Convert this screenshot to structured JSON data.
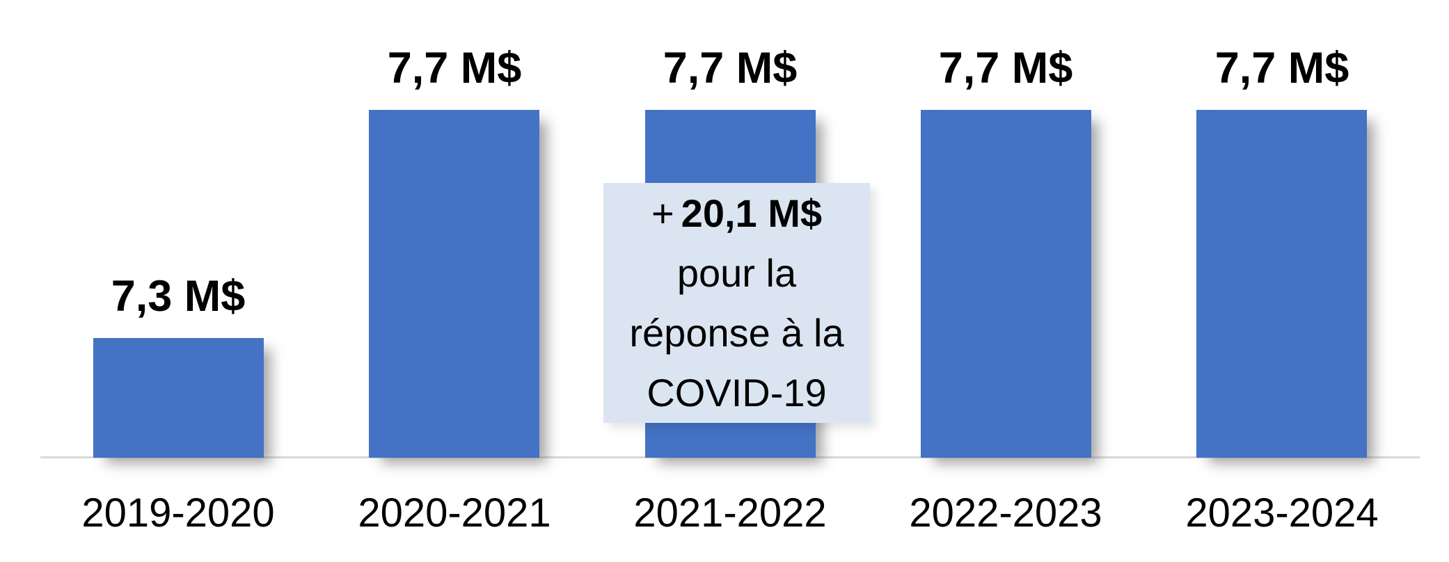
{
  "chart_data": {
    "type": "bar",
    "categories": [
      "2019-2020",
      "2020-2021",
      "2021-2022",
      "2022-2023",
      "2023-2024"
    ],
    "values": [
      7.3,
      7.7,
      7.7,
      7.7,
      7.7
    ],
    "value_labels": [
      "7,3 M$",
      "7,7 M$",
      "7,7 M$",
      "7,7 M$",
      "7,7 M$"
    ],
    "title": "",
    "xlabel": "",
    "ylabel": "",
    "ylim": [
      7.09,
      7.7
    ],
    "grid": false,
    "legend": false,
    "bar_color": "#4472c4",
    "axis_line_color": "#d9d9d9",
    "annotation": {
      "prefix": "+",
      "amount": "20,1 M$",
      "lines": [
        "pour la",
        "réponse à la",
        "COVID-19"
      ],
      "bg_color": "#dbe5f1",
      "target_category": "2021-2022"
    }
  }
}
